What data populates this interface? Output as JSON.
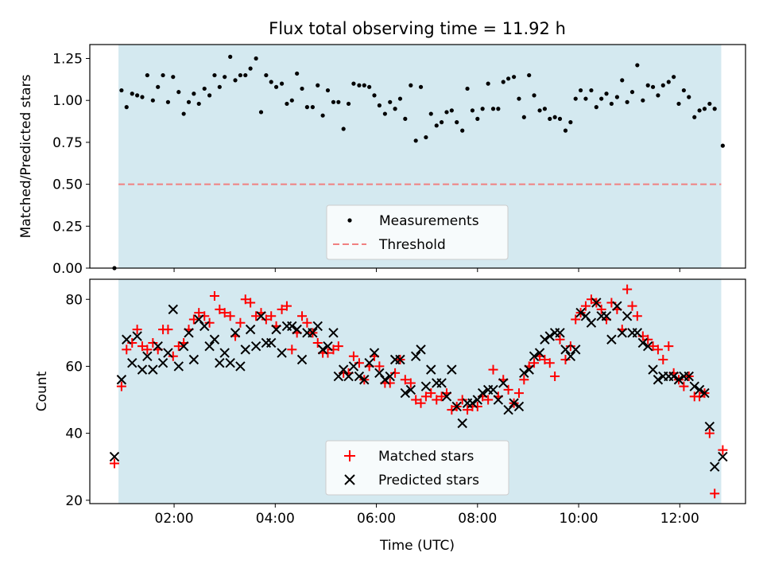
{
  "colors": {
    "shade": "#d4e9f0",
    "measurement": "#000000",
    "threshold": "#f08080",
    "matched": "#ff0000",
    "predicted": "#000000"
  },
  "title": "Flux total observing time = 11.92 h",
  "chart_data": [
    {
      "type": "scatter",
      "ylabel": "Matched/Predicted stars",
      "xlim": [
        0.333,
        13.3
      ],
      "ylim": [
        0,
        1.333
      ],
      "ytick_values": [
        0,
        0.25,
        0.5,
        0.75,
        1.0,
        1.25
      ],
      "ytick_labels": [
        "0.00",
        "0.25",
        "0.50",
        "0.75",
        "1.00",
        "1.25"
      ],
      "shade_range": [
        0.9,
        12.82
      ],
      "threshold": 0.5,
      "legend": {
        "position": "bottom-center",
        "entries": [
          "Measurements",
          "Threshold"
        ]
      },
      "series": [
        {
          "name": "Measurements",
          "x": [
            0.82,
            0.96,
            1.06,
            1.17,
            1.27,
            1.37,
            1.47,
            1.58,
            1.68,
            1.78,
            1.88,
            1.98,
            2.09,
            2.19,
            2.29,
            2.39,
            2.49,
            2.6,
            2.7,
            2.8,
            2.9,
            3.0,
            3.11,
            3.21,
            3.31,
            3.41,
            3.51,
            3.62,
            3.72,
            3.82,
            3.92,
            4.02,
            4.13,
            4.23,
            4.33,
            4.43,
            4.53,
            4.63,
            4.74,
            4.84,
            4.94,
            5.04,
            5.15,
            5.25,
            5.35,
            5.45,
            5.55,
            5.66,
            5.76,
            5.86,
            5.96,
            6.06,
            6.17,
            6.27,
            6.37,
            6.47,
            6.57,
            6.68,
            6.78,
            6.88,
            6.98,
            7.08,
            7.19,
            7.29,
            7.39,
            7.49,
            7.59,
            7.7,
            7.8,
            7.9,
            8.0,
            8.1,
            8.21,
            8.31,
            8.41,
            8.51,
            8.61,
            8.72,
            8.82,
            8.92,
            9.02,
            9.12,
            9.23,
            9.33,
            9.43,
            9.53,
            9.63,
            9.74,
            9.84,
            9.94,
            10.04,
            10.14,
            10.25,
            10.35,
            10.45,
            10.55,
            10.65,
            10.76,
            10.86,
            10.96,
            11.06,
            11.16,
            11.27,
            11.37,
            11.47,
            11.57,
            11.67,
            11.78,
            11.88,
            11.98,
            12.08,
            12.18,
            12.29,
            12.39,
            12.49,
            12.59,
            12.69,
            12.85
          ],
          "y": [
            0.0,
            1.06,
            0.96,
            1.04,
            1.03,
            1.02,
            1.15,
            1.0,
            1.08,
            1.15,
            0.99,
            1.14,
            1.05,
            0.92,
            0.99,
            1.04,
            0.98,
            1.07,
            1.03,
            1.15,
            1.08,
            1.14,
            1.26,
            1.12,
            1.15,
            1.15,
            1.19,
            1.25,
            0.93,
            1.15,
            1.11,
            1.08,
            1.1,
            0.98,
            1.0,
            1.16,
            1.07,
            0.96,
            0.96,
            1.09,
            0.91,
            1.06,
            0.99,
            0.99,
            0.83,
            0.98,
            1.1,
            1.09,
            1.09,
            1.08,
            1.03,
            0.97,
            0.92,
            0.99,
            0.95,
            1.01,
            0.89,
            1.09,
            0.76,
            1.08,
            0.78,
            0.92,
            0.85,
            0.87,
            0.93,
            0.94,
            0.87,
            0.82,
            1.07,
            0.94,
            0.89,
            0.95,
            1.1,
            0.95,
            0.95,
            1.11,
            1.13,
            1.14,
            1.01,
            0.9,
            1.15,
            1.03,
            0.94,
            0.95,
            0.89,
            0.9,
            0.89,
            0.82,
            0.87,
            1.01,
            1.06,
            1.01,
            1.06,
            0.96,
            1.01,
            1.04,
            0.98,
            1.02,
            1.12,
            0.99,
            1.05,
            1.21,
            1.0,
            1.09,
            1.08,
            1.03,
            1.09,
            1.11,
            1.14,
            0.98,
            1.06,
            1.02,
            0.9,
            0.94,
            0.95,
            0.98,
            0.95,
            0.73
          ]
        }
      ]
    },
    {
      "type": "scatter",
      "xlabel": "Time (UTC)",
      "ylabel": "Count",
      "xlim": [
        0.333,
        13.3
      ],
      "ylim": [
        19,
        86
      ],
      "ytick_values": [
        20,
        40,
        60,
        80
      ],
      "ytick_labels": [
        "20",
        "40",
        "60",
        "80"
      ],
      "xtick_values": [
        2,
        4,
        6,
        8,
        10,
        12
      ],
      "xtick_labels": [
        "02:00",
        "04:00",
        "06:00",
        "08:00",
        "10:00",
        "12:00"
      ],
      "shade_range": [
        0.9,
        12.82
      ],
      "legend": {
        "position": "bottom-center",
        "entries": [
          "Matched stars",
          "Predicted stars"
        ]
      },
      "series": [
        {
          "name": "Matched stars",
          "x": [
            0.82,
            0.96,
            1.06,
            1.17,
            1.27,
            1.37,
            1.47,
            1.58,
            1.68,
            1.78,
            1.88,
            1.98,
            2.09,
            2.19,
            2.29,
            2.39,
            2.49,
            2.6,
            2.7,
            2.8,
            2.9,
            3.0,
            3.11,
            3.21,
            3.31,
            3.41,
            3.51,
            3.62,
            3.72,
            3.82,
            3.92,
            4.02,
            4.13,
            4.23,
            4.33,
            4.43,
            4.53,
            4.63,
            4.74,
            4.84,
            4.94,
            5.04,
            5.15,
            5.25,
            5.35,
            5.45,
            5.55,
            5.66,
            5.76,
            5.86,
            5.96,
            6.06,
            6.17,
            6.27,
            6.37,
            6.47,
            6.57,
            6.68,
            6.78,
            6.88,
            6.98,
            7.08,
            7.19,
            7.29,
            7.39,
            7.49,
            7.59,
            7.7,
            7.8,
            7.9,
            8.0,
            8.1,
            8.21,
            8.31,
            8.41,
            8.51,
            8.61,
            8.72,
            8.82,
            8.92,
            9.02,
            9.12,
            9.23,
            9.33,
            9.43,
            9.53,
            9.63,
            9.74,
            9.84,
            9.94,
            10.04,
            10.14,
            10.25,
            10.35,
            10.45,
            10.55,
            10.65,
            10.76,
            10.86,
            10.96,
            11.06,
            11.16,
            11.27,
            11.37,
            11.47,
            11.57,
            11.67,
            11.78,
            11.88,
            11.98,
            12.08,
            12.18,
            12.29,
            12.39,
            12.49,
            12.59,
            12.69,
            12.85
          ],
          "y": [
            31,
            54,
            65,
            67,
            71,
            66,
            65,
            67,
            65,
            71,
            71,
            63,
            66,
            67,
            71,
            74,
            76,
            75,
            73,
            81,
            77,
            76,
            75,
            69,
            73,
            80,
            79,
            75,
            76,
            74,
            75,
            72,
            77,
            78,
            65,
            70,
            75,
            73,
            70,
            67,
            64,
            64,
            65,
            66,
            58,
            58,
            63,
            61,
            56,
            60,
            63,
            60,
            55,
            55,
            58,
            62,
            56,
            55,
            50,
            49,
            51,
            52,
            50,
            51,
            52,
            47,
            48,
            50,
            47,
            48,
            48,
            51,
            50,
            59,
            51,
            56,
            53,
            49,
            52,
            56,
            60,
            61,
            63,
            62,
            61,
            57,
            68,
            62,
            66,
            74,
            76,
            78,
            80,
            79,
            77,
            74,
            79,
            77,
            71,
            83,
            78,
            75,
            69,
            68,
            66,
            65,
            62,
            66,
            58,
            56,
            54,
            57,
            51,
            51,
            52,
            40,
            22,
            35
          ]
        },
        {
          "name": "Predicted stars",
          "x": [
            0.82,
            0.96,
            1.06,
            1.17,
            1.27,
            1.37,
            1.47,
            1.58,
            1.68,
            1.78,
            1.88,
            1.98,
            2.09,
            2.19,
            2.29,
            2.39,
            2.49,
            2.6,
            2.7,
            2.8,
            2.9,
            3.0,
            3.11,
            3.21,
            3.31,
            3.41,
            3.51,
            3.62,
            3.72,
            3.82,
            3.92,
            4.02,
            4.13,
            4.23,
            4.33,
            4.43,
            4.53,
            4.63,
            4.74,
            4.84,
            4.94,
            5.04,
            5.15,
            5.25,
            5.35,
            5.45,
            5.55,
            5.66,
            5.76,
            5.86,
            5.96,
            6.06,
            6.17,
            6.27,
            6.37,
            6.47,
            6.57,
            6.68,
            6.78,
            6.88,
            6.98,
            7.08,
            7.19,
            7.29,
            7.39,
            7.49,
            7.59,
            7.7,
            7.8,
            7.9,
            8.0,
            8.1,
            8.21,
            8.31,
            8.41,
            8.51,
            8.61,
            8.72,
            8.82,
            8.92,
            9.02,
            9.12,
            9.23,
            9.33,
            9.43,
            9.53,
            9.63,
            9.74,
            9.84,
            9.94,
            10.04,
            10.14,
            10.25,
            10.35,
            10.45,
            10.55,
            10.65,
            10.76,
            10.86,
            10.96,
            11.06,
            11.16,
            11.27,
            11.37,
            11.47,
            11.57,
            11.67,
            11.78,
            11.88,
            11.98,
            12.08,
            12.18,
            12.29,
            12.39,
            12.49,
            12.59,
            12.69,
            12.85
          ],
          "y": [
            33,
            56,
            68,
            61,
            69,
            59,
            63,
            59,
            66,
            61,
            64,
            77,
            60,
            66,
            70,
            62,
            74,
            72,
            66,
            68,
            61,
            64,
            61,
            70,
            60,
            65,
            71,
            66,
            75,
            67,
            67,
            71,
            64,
            72,
            72,
            71,
            62,
            70,
            70,
            72,
            65,
            66,
            70,
            57,
            59,
            57,
            60,
            57,
            56,
            61,
            64,
            58,
            56,
            57,
            62,
            62,
            52,
            53,
            63,
            65,
            54,
            59,
            55,
            55,
            51,
            59,
            48,
            43,
            49,
            49,
            50,
            52,
            53,
            53,
            50,
            55,
            47,
            49,
            48,
            58,
            59,
            63,
            64,
            68,
            69,
            70,
            70,
            65,
            63,
            65,
            76,
            75,
            73,
            79,
            75,
            75,
            68,
            78,
            70,
            75,
            70,
            70,
            67,
            66,
            59,
            56,
            57,
            57,
            57,
            56,
            57,
            57,
            54,
            53,
            52,
            42,
            30,
            33
          ]
        }
      ]
    }
  ]
}
